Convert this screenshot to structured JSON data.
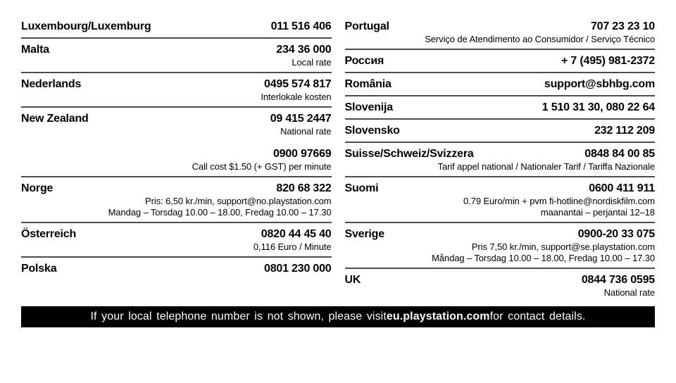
{
  "page": {
    "background": "#ffffff"
  },
  "colors": {
    "text": "#000000",
    "rule": "#4c4c4c",
    "footer_background": "#000000",
    "footer_text": "#ffffff"
  },
  "columns": {
    "left": {
      "entries": [
        {
          "id": "luxembourg",
          "blocks": [
            {
              "country": "Luxembourg/Luxemburg",
              "value": "011 516 406",
              "details": []
            }
          ]
        },
        {
          "id": "malta",
          "blocks": [
            {
              "country": "Malta",
              "value": "234 36 000",
              "details": [
                "Local rate"
              ]
            }
          ]
        },
        {
          "id": "nederlands",
          "blocks": [
            {
              "country": "Nederlands",
              "value": "0495 574 817",
              "details": [
                "Interlokale kosten"
              ]
            }
          ]
        },
        {
          "id": "new-zealand",
          "blocks": [
            {
              "country": "New Zealand",
              "value": "09 415 2447",
              "details": [
                "National rate"
              ]
            },
            {
              "country": "",
              "value": "0900 97669",
              "details": [
                "Call cost $1.50 (+ GST) per minute"
              ]
            }
          ]
        },
        {
          "id": "norge",
          "blocks": [
            {
              "country": "Norge",
              "value": "820 68 322",
              "details": [
                "Pris: 6,50 kr./min, support@no.playstation.com",
                "Mandag – Torsdag 10.00 – 18.00, Fredag 10.00 – 17.30"
              ]
            }
          ]
        },
        {
          "id": "oesterreich",
          "blocks": [
            {
              "country": "Österreich",
              "value": "0820 44 45 40",
              "details": [
                "0,116 Euro / Minute"
              ]
            }
          ]
        },
        {
          "id": "polska",
          "blocks": [
            {
              "country": "Polska",
              "value": "0801 230 000",
              "details": []
            }
          ]
        }
      ]
    },
    "right": {
      "entries": [
        {
          "id": "portugal",
          "blocks": [
            {
              "country": "Portugal",
              "value": "707 23 23 10",
              "details": [
                "Serviço de Atendimento ao Consumidor / Serviço Técnico"
              ]
            }
          ]
        },
        {
          "id": "rossiya",
          "blocks": [
            {
              "country": "Россия",
              "value": "+ 7 (495) 981-2372",
              "details": []
            }
          ]
        },
        {
          "id": "romania",
          "blocks": [
            {
              "country": "România",
              "value": "support@sbhbg.com",
              "details": []
            }
          ]
        },
        {
          "id": "slovenija",
          "blocks": [
            {
              "country": "Slovenija",
              "value": "1 510 31 30, 080 22 64",
              "details": []
            }
          ]
        },
        {
          "id": "slovensko",
          "blocks": [
            {
              "country": "Slovensko",
              "value": "232 112 209",
              "details": []
            }
          ]
        },
        {
          "id": "suisse",
          "blocks": [
            {
              "country": "Suisse/Schweiz/Svizzera",
              "value": "0848 84 00 85",
              "details": [
                "Tarif appel national / Nationaler Tarif / Tariffa Nazionale"
              ]
            }
          ]
        },
        {
          "id": "suomi",
          "blocks": [
            {
              "country": "Suomi",
              "value": "0600 411 911",
              "details": [
                "0.79 Euro/min + pvm fi-hotline@nordiskfilm.com",
                "maanantai – perjantai 12–18"
              ]
            }
          ]
        },
        {
          "id": "sverige",
          "blocks": [
            {
              "country": "Sverige",
              "value": "0900-20 33 075",
              "details": [
                "Pris 7,50 kr./min, support@se.playstation.com",
                "Måndag – Torsdag 10.00 – 18.00, Fredag 10.00 – 17.30"
              ]
            }
          ]
        },
        {
          "id": "uk",
          "blocks": [
            {
              "country": "UK",
              "value": "0844 736 0595",
              "details": [
                "National rate"
              ]
            }
          ]
        }
      ]
    }
  },
  "footer": {
    "text_before": "If your local telephone number is not shown, please visit ",
    "site": "eu.playstation.com",
    "text_after": " for contact details."
  }
}
